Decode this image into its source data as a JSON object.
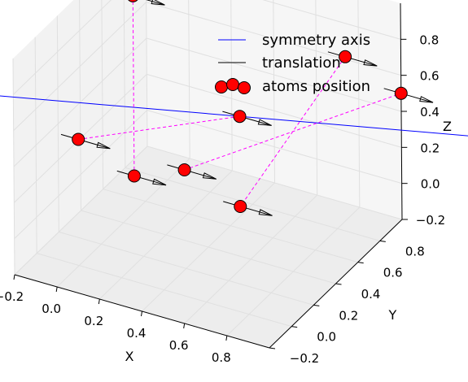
{
  "chart_data": {
    "type": "scatter",
    "projection": "3d",
    "title": "",
    "xlabel": "X",
    "ylabel": "Y",
    "zlabel": "Z",
    "xlim": [
      -0.2,
      1.0
    ],
    "ylim": [
      -0.2,
      1.0
    ],
    "zlim": [
      -0.2,
      1.0
    ],
    "x_ticks": [
      "−0.2",
      "0.0",
      "0.2",
      "0.4",
      "0.6",
      "0.8"
    ],
    "y_ticks": [
      "−0.2",
      "0.0",
      "0.2",
      "0.4",
      "0.6",
      "0.8"
    ],
    "z_ticks": [
      "−0.2",
      "0.0",
      "0.2",
      "0.4",
      "0.6",
      "0.8"
    ],
    "grid": true,
    "legend": {
      "placement": "top-right",
      "entries": [
        {
          "label": "symmetry axis",
          "kind": "line",
          "color": "#0000ff"
        },
        {
          "label": "translation",
          "kind": "line",
          "color": "#000000"
        },
        {
          "label": "atoms position",
          "kind": "marker",
          "color": "#ff0000"
        }
      ]
    },
    "atoms": [
      {
        "x": 0.0,
        "y": 0.5,
        "z": 1.0
      },
      {
        "x": 0.0,
        "y": 0.0,
        "z": 0.5
      },
      {
        "x": 0.5,
        "y": 0.5,
        "z": 0.5
      },
      {
        "x": 0.0,
        "y": 0.5,
        "z": 0.0
      },
      {
        "x": 1.0,
        "y": 0.5,
        "z": 1.0
      },
      {
        "x": 0.5,
        "y": 0.0,
        "z": 0.5
      },
      {
        "x": 1.0,
        "y": 1.0,
        "z": 0.5
      },
      {
        "x": 0.5,
        "y": 0.5,
        "z": 0.0
      }
    ],
    "translation": {
      "dx": 0.15,
      "dy": 0.0,
      "dz": 0.0,
      "color": "#000000"
    },
    "dashed_links": [
      [
        0,
        3
      ],
      [
        1,
        2
      ],
      [
        4,
        7
      ],
      [
        5,
        6
      ]
    ],
    "dashed_color": "#ff00ff",
    "symmetry_axis": {
      "point": [
        0.5,
        0.5,
        0.5
      ],
      "direction": [
        1.0,
        0.6,
        -0.15
      ],
      "color": "#0000ff"
    }
  }
}
